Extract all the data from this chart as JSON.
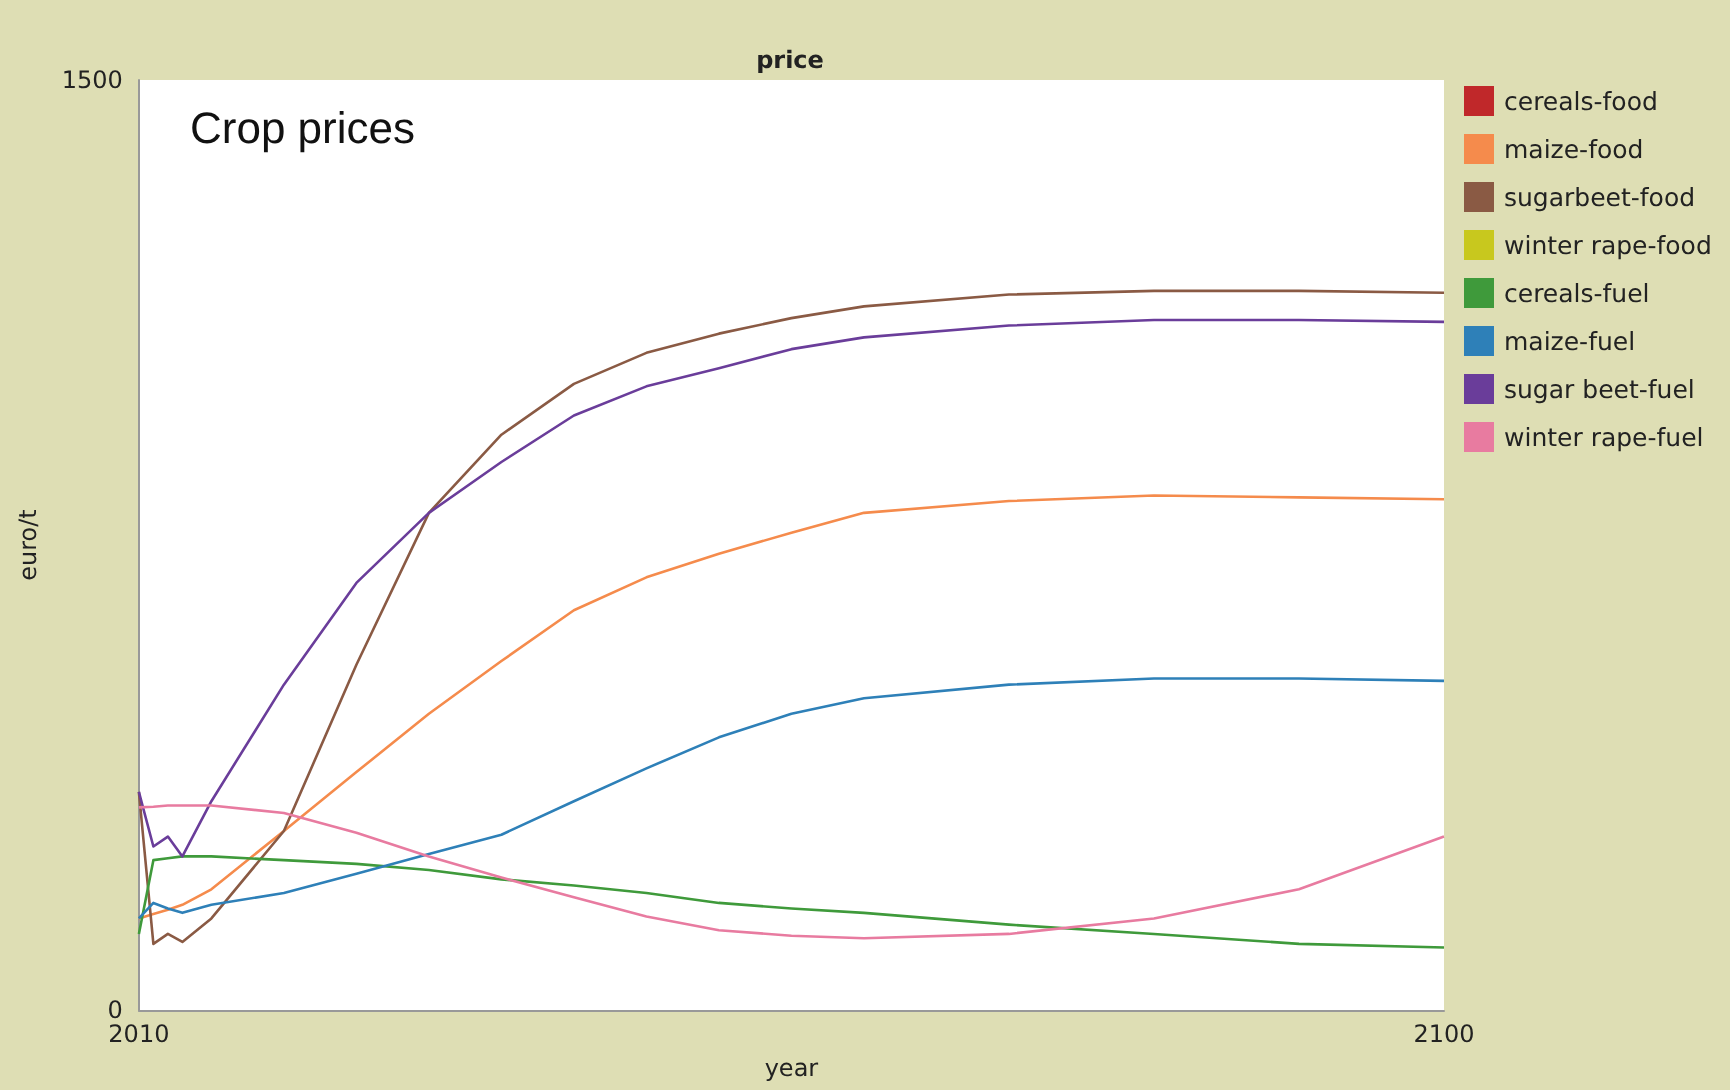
{
  "chart_data": {
    "type": "line",
    "title": "price",
    "xlabel": "year",
    "ylabel": "euro/t",
    "annotations": [
      "Crop prices"
    ],
    "x": [
      2010,
      2011,
      2012,
      2013,
      2015,
      2020,
      2025,
      2030,
      2035,
      2040,
      2045,
      2050,
      2055,
      2060,
      2070,
      2080,
      2090,
      2100
    ],
    "xlim": [
      2010,
      2100
    ],
    "xticks": [
      2010,
      2100
    ],
    "ylim": [
      0,
      1500
    ],
    "yticks": [
      0,
      1500
    ],
    "grid": false,
    "legend": "right",
    "series": [
      {
        "name": "cereals-food",
        "color": "#c0282a",
        "values": [
          null,
          null,
          null,
          null,
          null,
          null,
          null,
          null,
          null,
          null,
          null,
          null,
          null,
          null,
          null,
          null,
          null,
          null
        ]
      },
      {
        "name": "maize-food",
        "color": "#f58b4c",
        "values": [
          148,
          155,
          162,
          170,
          195,
          289,
          384,
          478,
          563,
          645,
          698,
          736,
          770,
          802,
          821,
          830,
          827,
          824
        ]
      },
      {
        "name": "sugarbeet-food",
        "color": "#8a5a44",
        "values": [
          352,
          107,
          123,
          110,
          148,
          289,
          557,
          802,
          928,
          1010,
          1060,
          1091,
          1116,
          1135,
          1154,
          1160,
          1160,
          1157
        ]
      },
      {
        "name": "winter rape-food",
        "color": "#c8c81e",
        "values": [
          null,
          null,
          null,
          null,
          null,
          null,
          null,
          null,
          null,
          null,
          null,
          null,
          null,
          null,
          null,
          null,
          null,
          null
        ]
      },
      {
        "name": "cereals-fuel",
        "color": "#3f9a3b",
        "values": [
          123,
          242,
          245,
          248,
          248,
          242,
          236,
          226,
          211,
          201,
          189,
          173,
          164,
          157,
          138,
          123,
          107,
          101
        ]
      },
      {
        "name": "maize-fuel",
        "color": "#2e80b8",
        "values": [
          148,
          173,
          164,
          157,
          170,
          189,
          220,
          252,
          283,
          337,
          390,
          440,
          478,
          503,
          525,
          535,
          535,
          531
        ]
      },
      {
        "name": "sugar beet-fuel",
        "color": "#6a3d9a",
        "values": [
          352,
          264,
          280,
          248,
          337,
          525,
          689,
          802,
          884,
          959,
          1006,
          1035,
          1066,
          1085,
          1104,
          1113,
          1113,
          1110
        ]
      },
      {
        "name": "winter rape-fuel",
        "color": "#e87ba0",
        "values": [
          327,
          328,
          330,
          330,
          330,
          318,
          286,
          248,
          214,
          182,
          151,
          129,
          120,
          116,
          123,
          148,
          195,
          280
        ]
      }
    ]
  }
}
